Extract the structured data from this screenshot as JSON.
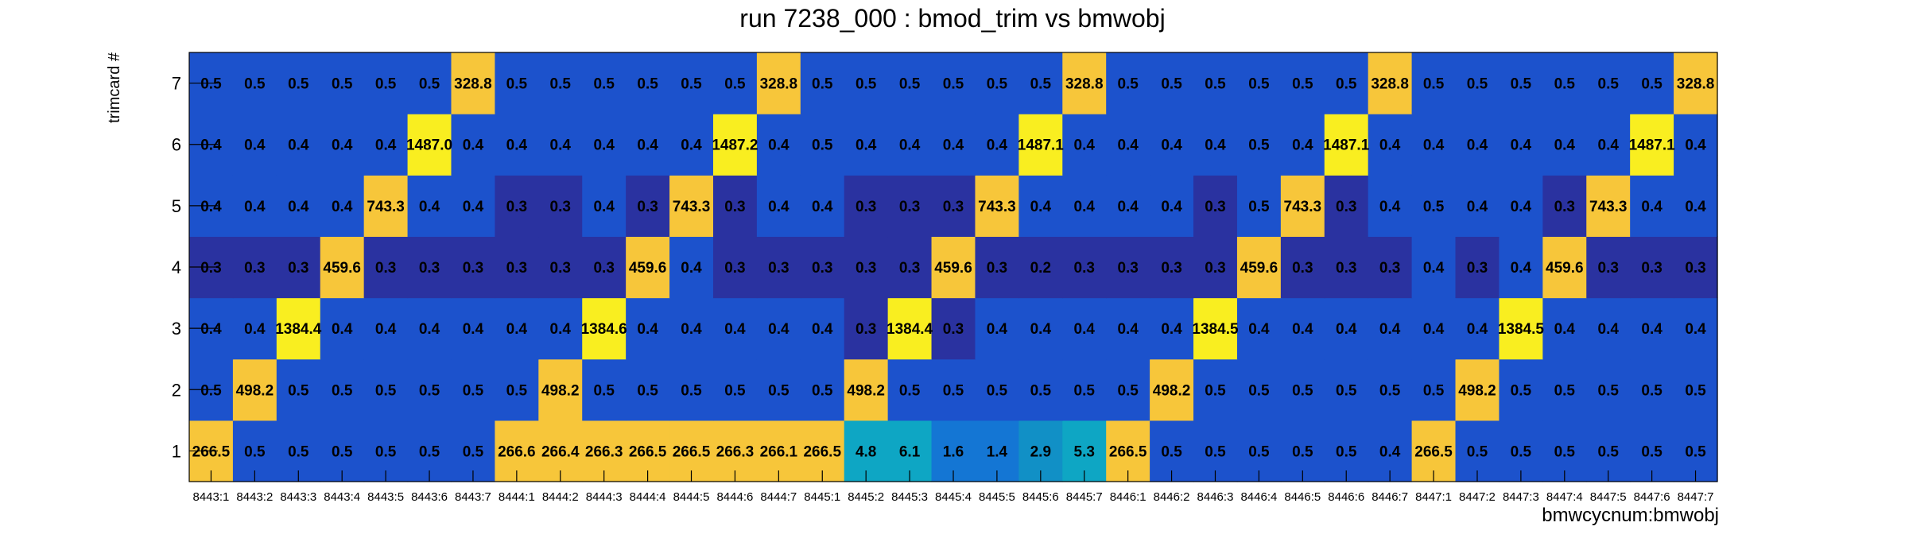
{
  "chart_data": {
    "type": "heatmap",
    "title": "run 7238_000 : bmod_trim vs bmwobj",
    "xlabel": "bmwcycnum:bmwobj",
    "ylabel": "trimcard #",
    "x_categories": [
      "8443:1",
      "8443:2",
      "8443:3",
      "8443:4",
      "8443:5",
      "8443:6",
      "8443:7",
      "8444:1",
      "8444:2",
      "8444:3",
      "8444:4",
      "8444:5",
      "8444:6",
      "8444:7",
      "8445:1",
      "8445:2",
      "8445:3",
      "8445:4",
      "8445:5",
      "8445:6",
      "8445:7",
      "8446:1",
      "8446:2",
      "8446:3",
      "8446:4",
      "8446:5",
      "8446:6",
      "8446:7",
      "8447:1",
      "8447:2",
      "8447:3",
      "8447:4",
      "8447:5",
      "8447:6",
      "8447:7"
    ],
    "y_categories": [
      "1",
      "2",
      "3",
      "4",
      "5",
      "6",
      "7"
    ],
    "rows": [
      {
        "y": "1",
        "values": [
          "266.5",
          "0.5",
          "0.5",
          "0.5",
          "0.5",
          "0.5",
          "0.5",
          "266.6",
          "266.4",
          "266.3",
          "266.5",
          "266.5",
          "266.3",
          "266.1",
          "266.5",
          "4.8",
          "6.1",
          "1.6",
          "1.4",
          "2.9",
          "5.3",
          "266.5",
          "0.5",
          "0.5",
          "0.5",
          "0.5",
          "0.5",
          "0.4",
          "266.5",
          "0.5",
          "0.5",
          "0.5",
          "0.5",
          "0.5",
          "0.5"
        ]
      },
      {
        "y": "2",
        "values": [
          "0.5",
          "498.2",
          "0.5",
          "0.5",
          "0.5",
          "0.5",
          "0.5",
          "0.5",
          "498.2",
          "0.5",
          "0.5",
          "0.5",
          "0.5",
          "0.5",
          "0.5",
          "498.2",
          "0.5",
          "0.5",
          "0.5",
          "0.5",
          "0.5",
          "0.5",
          "498.2",
          "0.5",
          "0.5",
          "0.5",
          "0.5",
          "0.5",
          "0.5",
          "498.2",
          "0.5",
          "0.5",
          "0.5",
          "0.5",
          "0.5"
        ]
      },
      {
        "y": "3",
        "values": [
          "0.4",
          "0.4",
          "1384.4",
          "0.4",
          "0.4",
          "0.4",
          "0.4",
          "0.4",
          "0.4",
          "1384.6",
          "0.4",
          "0.4",
          "0.4",
          "0.4",
          "0.4",
          "0.3",
          "1384.4",
          "0.3",
          "0.4",
          "0.4",
          "0.4",
          "0.4",
          "0.4",
          "1384.5",
          "0.4",
          "0.4",
          "0.4",
          "0.4",
          "0.4",
          "0.4",
          "1384.5",
          "0.4",
          "0.4",
          "0.4",
          "0.4"
        ]
      },
      {
        "y": "4",
        "values": [
          "0.3",
          "0.3",
          "0.3",
          "459.6",
          "0.3",
          "0.3",
          "0.3",
          "0.3",
          "0.3",
          "0.3",
          "459.6",
          "0.4",
          "0.3",
          "0.3",
          "0.3",
          "0.3",
          "0.3",
          "459.6",
          "0.3",
          "0.2",
          "0.3",
          "0.3",
          "0.3",
          "0.3",
          "459.6",
          "0.3",
          "0.3",
          "0.3",
          "0.4",
          "0.3",
          "0.4",
          "459.6",
          "0.3",
          "0.3",
          "0.3"
        ]
      },
      {
        "y": "5",
        "values": [
          "0.4",
          "0.4",
          "0.4",
          "0.4",
          "743.3",
          "0.4",
          "0.4",
          "0.3",
          "0.3",
          "0.4",
          "0.3",
          "743.3",
          "0.3",
          "0.4",
          "0.4",
          "0.3",
          "0.3",
          "0.3",
          "743.3",
          "0.4",
          "0.4",
          "0.4",
          "0.4",
          "0.3",
          "0.5",
          "743.3",
          "0.3",
          "0.4",
          "0.5",
          "0.4",
          "0.4",
          "0.3",
          "743.3",
          "0.4",
          "0.4"
        ]
      },
      {
        "y": "6",
        "values": [
          "0.4",
          "0.4",
          "0.4",
          "0.4",
          "0.4",
          "1487.0",
          "0.4",
          "0.4",
          "0.4",
          "0.4",
          "0.4",
          "0.4",
          "1487.2",
          "0.4",
          "0.5",
          "0.4",
          "0.4",
          "0.4",
          "0.4",
          "1487.1",
          "0.4",
          "0.4",
          "0.4",
          "0.4",
          "0.5",
          "0.4",
          "1487.1",
          "0.4",
          "0.4",
          "0.4",
          "0.4",
          "0.4",
          "0.4",
          "1487.1",
          "0.4"
        ]
      },
      {
        "y": "7",
        "values": [
          "0.5",
          "0.5",
          "0.5",
          "0.5",
          "0.5",
          "0.5",
          "328.8",
          "0.5",
          "0.5",
          "0.5",
          "0.5",
          "0.5",
          "0.5",
          "328.8",
          "0.5",
          "0.5",
          "0.5",
          "0.5",
          "0.5",
          "0.5",
          "328.8",
          "0.5",
          "0.5",
          "0.5",
          "0.5",
          "0.5",
          "0.5",
          "328.8",
          "0.5",
          "0.5",
          "0.5",
          "0.5",
          "0.5",
          "0.5",
          "328.8"
        ]
      }
    ],
    "grid": false,
    "colors": {
      "lowest": "#2a32a0",
      "low": "#1c52cc",
      "low_mid": "#1476d4",
      "mid": "#1190c6",
      "mid_high": "#0ea6c4",
      "high": "#f7c63a",
      "highest": "#f9ee20",
      "frame": "#000000",
      "text": "#000000"
    }
  }
}
